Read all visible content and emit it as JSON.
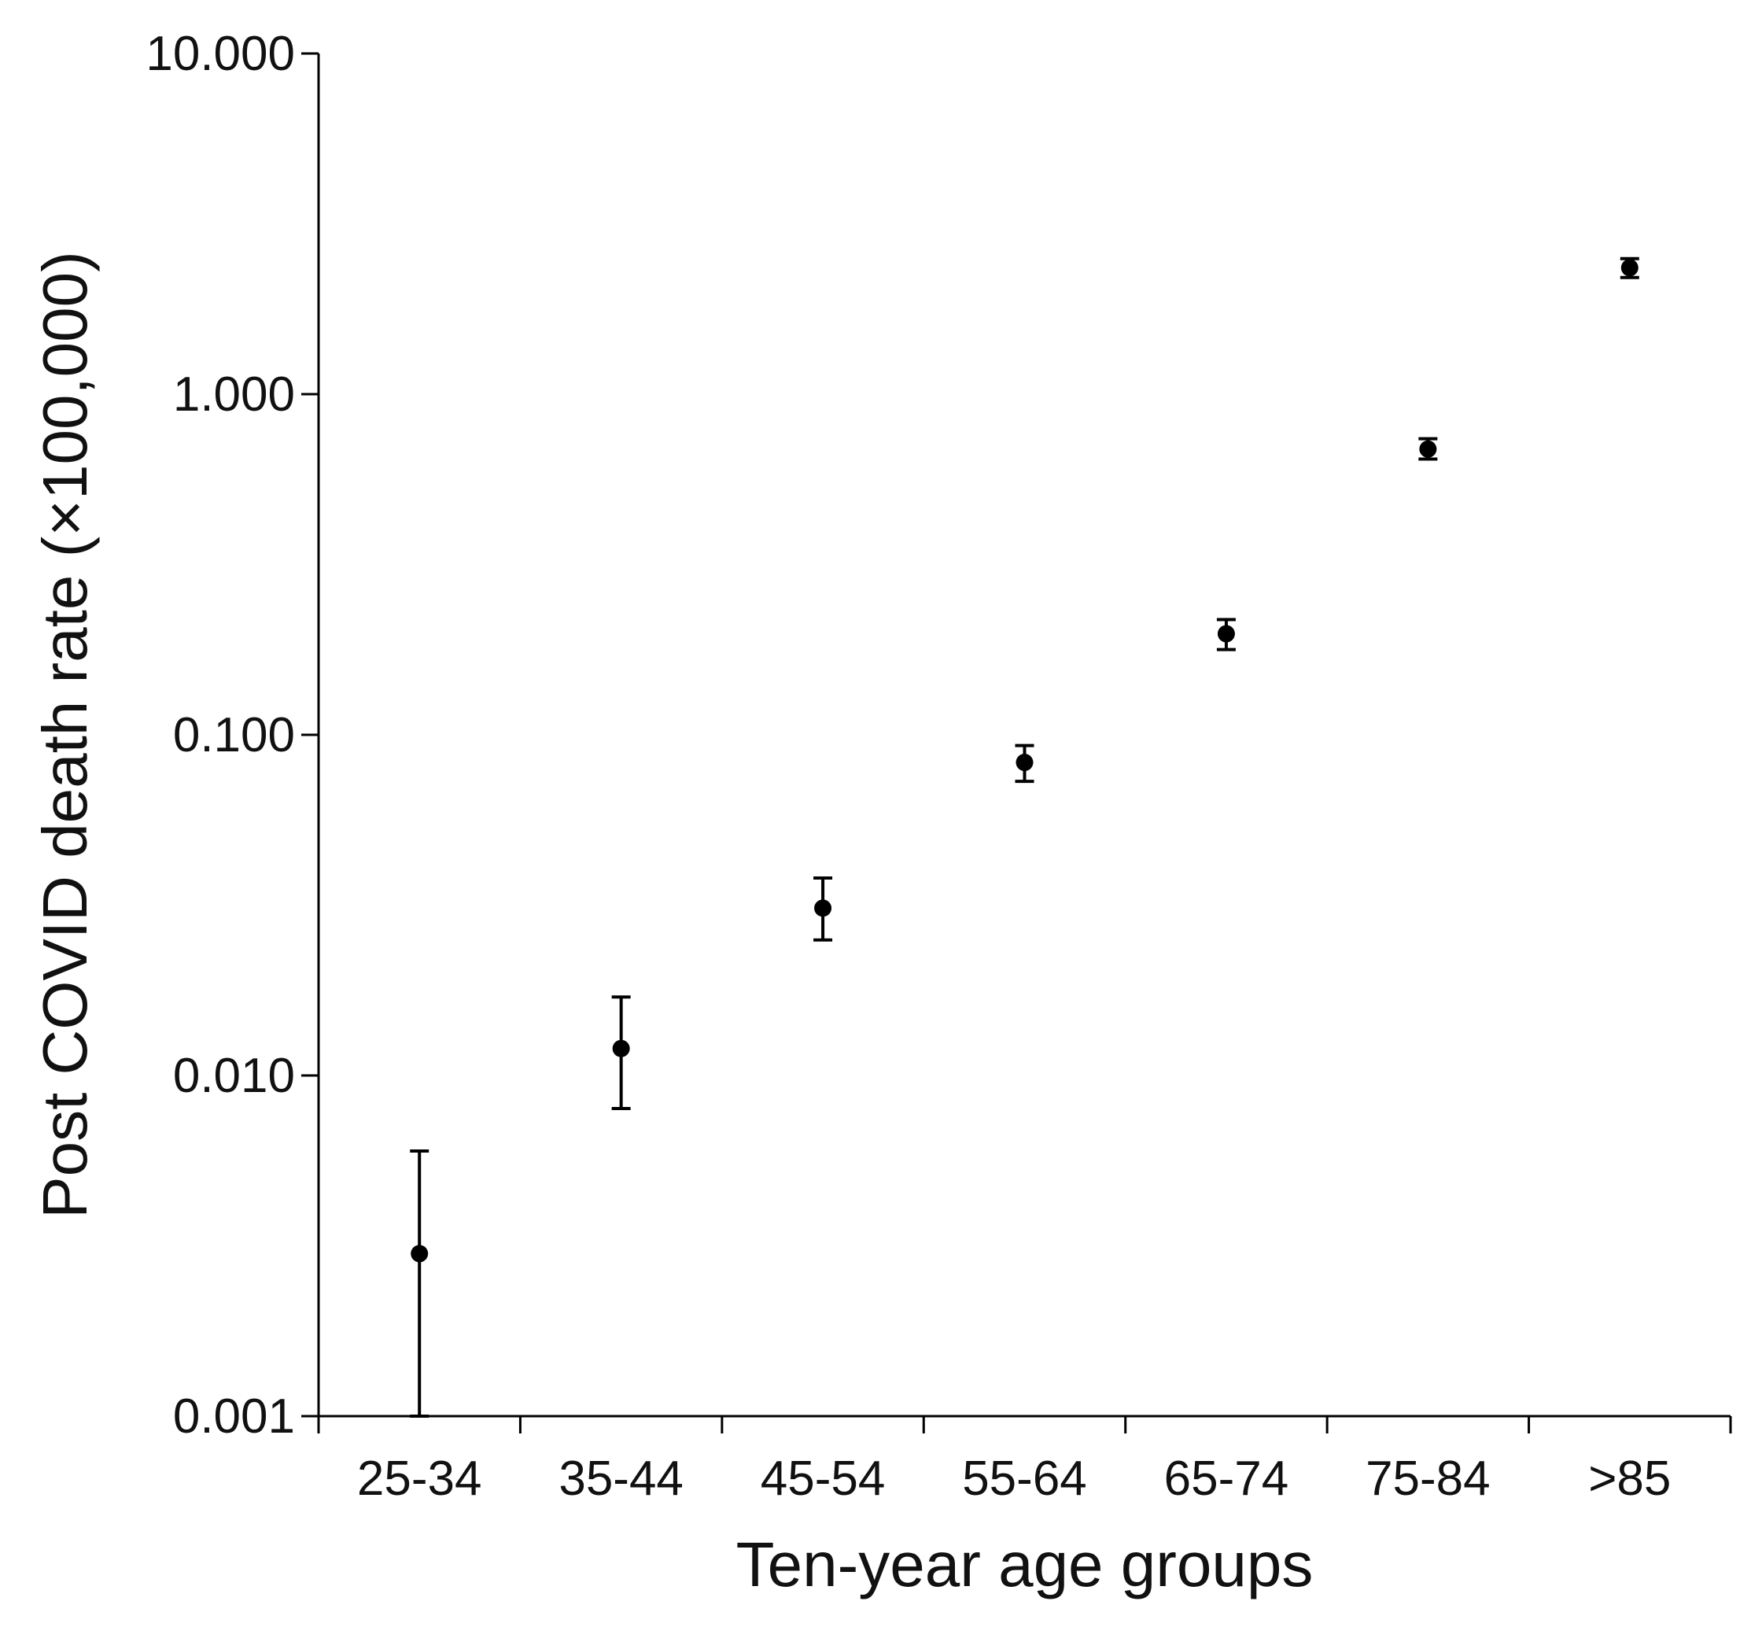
{
  "chart_data": {
    "type": "scatter",
    "error_bars": true,
    "title": "",
    "xlabel": "Ten-year age groups",
    "ylabel": "Post COVID death rate (×100,000)",
    "y_scale": "log",
    "ylim": [
      0.001,
      10
    ],
    "y_ticks": [
      {
        "value": 0.001,
        "label": "0.001"
      },
      {
        "value": 0.01,
        "label": "0.010"
      },
      {
        "value": 0.1,
        "label": "0.100"
      },
      {
        "value": 1,
        "label": "1.000"
      },
      {
        "value": 10,
        "label": "10.000"
      }
    ],
    "categories": [
      "25-34",
      "35-44",
      "45-54",
      "55-64",
      "65-74",
      "75-84",
      ">85"
    ],
    "values": [
      0.003,
      0.012,
      0.031,
      0.083,
      0.198,
      0.69,
      2.35
    ],
    "error_low": [
      0.001,
      0.008,
      0.025,
      0.073,
      0.178,
      0.645,
      2.2
    ],
    "error_high": [
      0.006,
      0.017,
      0.038,
      0.093,
      0.218,
      0.74,
      2.5
    ],
    "grid": false,
    "legend": "none",
    "colors": {
      "marker": "#000000",
      "axis": "#000000",
      "text": "#111111"
    }
  }
}
